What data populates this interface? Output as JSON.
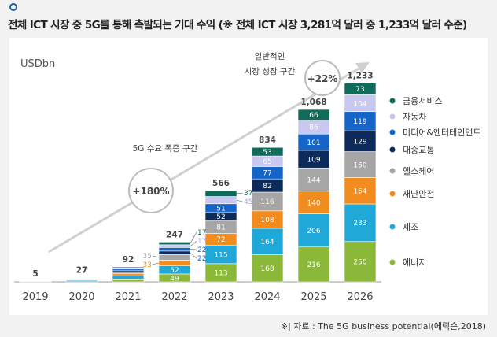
{
  "title": "전체 ICT 시장 중 5G를 통해 촉발되는 기대 수익 (※ 전체 ICT 시장 3,281억 달러 중 1,233억 달러 수준)",
  "footer": "※| 자료 : The 5G business potential(에릭슨,2018)",
  "chart_data": {
    "type": "bar",
    "stacked": true,
    "ylabel": "USDbn",
    "categories": [
      "2019",
      "2020",
      "2021",
      "2022",
      "2023",
      "2024",
      "2025",
      "2026"
    ],
    "totals": [
      "5",
      "27",
      "92",
      "247",
      "566",
      "834",
      "1,068",
      "1,233"
    ],
    "series": [
      {
        "name": "에너지",
        "color": "#8cb83a",
        "values": [
          1,
          6,
          18,
          49,
          113,
          168,
          216,
          250
        ]
      },
      {
        "name": "제조",
        "color": "#1fa8d8",
        "values": [
          1,
          6,
          20,
          52,
          115,
          164,
          206,
          233
        ]
      },
      {
        "name": "재난안전",
        "color": "#f28c1e",
        "values": [
          1,
          4,
          12,
          33,
          72,
          108,
          140,
          164
        ]
      },
      {
        "name": "헬스케어",
        "color": "#a6a6a6",
        "values": [
          1,
          4,
          13,
          35,
          81,
          116,
          144,
          160
        ]
      },
      {
        "name": "대중교통",
        "color": "#0d2b5a",
        "values": [
          0.5,
          2,
          9,
          22,
          52,
          82,
          109,
          129
        ]
      },
      {
        "name": "미디어&엔터테인먼트",
        "color": "#1565c8",
        "values": [
          0.5,
          2,
          8,
          22,
          51,
          77,
          101,
          119
        ]
      },
      {
        "name": "자동차",
        "color": "#c8c8f0",
        "values": [
          0,
          2,
          6,
          17,
          45,
          65,
          86,
          104
        ]
      },
      {
        "name": "금융서비스",
        "color": "#0f6b5a",
        "values": [
          0,
          1,
          6,
          17,
          37,
          53,
          66,
          73
        ]
      }
    ],
    "labeled_from_index": 3,
    "annotations": {
      "phase1_label": "5G 수요 폭증 구간",
      "phase1_growth": "+180%",
      "phase2_label_line1": "일반적인",
      "phase2_label_line2": "시장 성장 구간",
      "phase2_growth": "+22%"
    },
    "legend_placement": "right"
  }
}
